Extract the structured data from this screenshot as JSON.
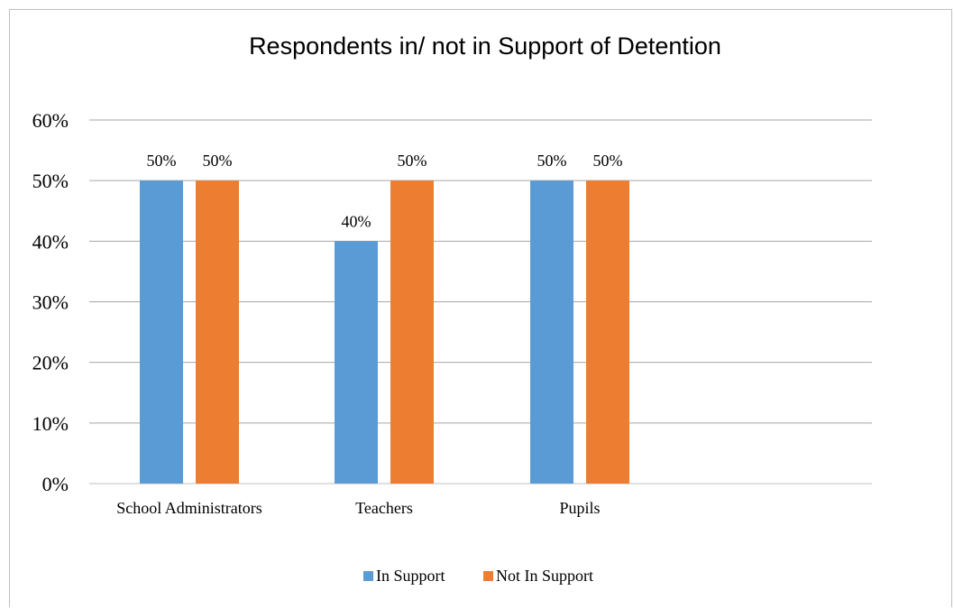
{
  "chart_data": {
    "type": "bar",
    "title": "Respondents in/ not in Support of Detention",
    "categories": [
      "School Administrators",
      "Teachers",
      "Pupils"
    ],
    "series": [
      {
        "name": "In Support",
        "values": [
          50,
          40,
          50
        ],
        "color": "#5b9bd5",
        "labels": [
          "50%",
          "40%",
          "50%"
        ]
      },
      {
        "name": "Not In Support",
        "values": [
          50,
          50,
          50
        ],
        "color": "#ed7d31",
        "labels": [
          "50%",
          "50%",
          "50%"
        ]
      }
    ],
    "ylim": [
      0,
      60
    ],
    "yticks": [
      0,
      10,
      20,
      30,
      40,
      50,
      60
    ],
    "ytick_labels": [
      "0%",
      "10%",
      "20%",
      "30%",
      "40%",
      "50%",
      "60%"
    ],
    "grid": true,
    "legend": "bottom"
  }
}
